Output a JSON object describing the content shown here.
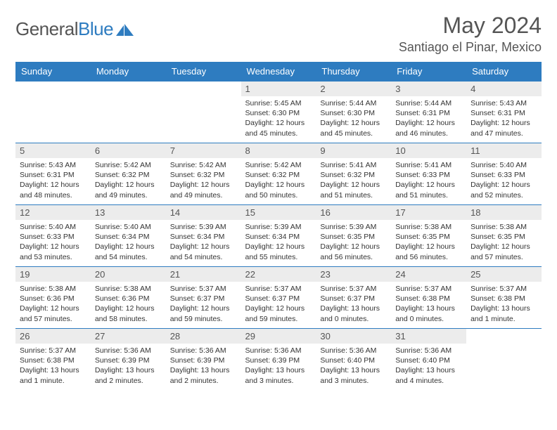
{
  "logo": {
    "word1": "General",
    "word2": "Blue"
  },
  "title": "May 2024",
  "location": "Santiago el Pinar, Mexico",
  "colors": {
    "brand": "#2e7cc0",
    "daybg": "#ececec",
    "text": "#555555",
    "body": "#333333"
  },
  "weekdays": [
    "Sunday",
    "Monday",
    "Tuesday",
    "Wednesday",
    "Thursday",
    "Friday",
    "Saturday"
  ],
  "weeks": [
    [
      {
        "n": "",
        "sr": "",
        "ss": "",
        "dl": ""
      },
      {
        "n": "",
        "sr": "",
        "ss": "",
        "dl": ""
      },
      {
        "n": "",
        "sr": "",
        "ss": "",
        "dl": ""
      },
      {
        "n": "1",
        "sr": "5:45 AM",
        "ss": "6:30 PM",
        "dl": "12 hours and 45 minutes."
      },
      {
        "n": "2",
        "sr": "5:44 AM",
        "ss": "6:30 PM",
        "dl": "12 hours and 45 minutes."
      },
      {
        "n": "3",
        "sr": "5:44 AM",
        "ss": "6:31 PM",
        "dl": "12 hours and 46 minutes."
      },
      {
        "n": "4",
        "sr": "5:43 AM",
        "ss": "6:31 PM",
        "dl": "12 hours and 47 minutes."
      }
    ],
    [
      {
        "n": "5",
        "sr": "5:43 AM",
        "ss": "6:31 PM",
        "dl": "12 hours and 48 minutes."
      },
      {
        "n": "6",
        "sr": "5:42 AM",
        "ss": "6:32 PM",
        "dl": "12 hours and 49 minutes."
      },
      {
        "n": "7",
        "sr": "5:42 AM",
        "ss": "6:32 PM",
        "dl": "12 hours and 49 minutes."
      },
      {
        "n": "8",
        "sr": "5:42 AM",
        "ss": "6:32 PM",
        "dl": "12 hours and 50 minutes."
      },
      {
        "n": "9",
        "sr": "5:41 AM",
        "ss": "6:32 PM",
        "dl": "12 hours and 51 minutes."
      },
      {
        "n": "10",
        "sr": "5:41 AM",
        "ss": "6:33 PM",
        "dl": "12 hours and 51 minutes."
      },
      {
        "n": "11",
        "sr": "5:40 AM",
        "ss": "6:33 PM",
        "dl": "12 hours and 52 minutes."
      }
    ],
    [
      {
        "n": "12",
        "sr": "5:40 AM",
        "ss": "6:33 PM",
        "dl": "12 hours and 53 minutes."
      },
      {
        "n": "13",
        "sr": "5:40 AM",
        "ss": "6:34 PM",
        "dl": "12 hours and 54 minutes."
      },
      {
        "n": "14",
        "sr": "5:39 AM",
        "ss": "6:34 PM",
        "dl": "12 hours and 54 minutes."
      },
      {
        "n": "15",
        "sr": "5:39 AM",
        "ss": "6:34 PM",
        "dl": "12 hours and 55 minutes."
      },
      {
        "n": "16",
        "sr": "5:39 AM",
        "ss": "6:35 PM",
        "dl": "12 hours and 56 minutes."
      },
      {
        "n": "17",
        "sr": "5:38 AM",
        "ss": "6:35 PM",
        "dl": "12 hours and 56 minutes."
      },
      {
        "n": "18",
        "sr": "5:38 AM",
        "ss": "6:35 PM",
        "dl": "12 hours and 57 minutes."
      }
    ],
    [
      {
        "n": "19",
        "sr": "5:38 AM",
        "ss": "6:36 PM",
        "dl": "12 hours and 57 minutes."
      },
      {
        "n": "20",
        "sr": "5:38 AM",
        "ss": "6:36 PM",
        "dl": "12 hours and 58 minutes."
      },
      {
        "n": "21",
        "sr": "5:37 AM",
        "ss": "6:37 PM",
        "dl": "12 hours and 59 minutes."
      },
      {
        "n": "22",
        "sr": "5:37 AM",
        "ss": "6:37 PM",
        "dl": "12 hours and 59 minutes."
      },
      {
        "n": "23",
        "sr": "5:37 AM",
        "ss": "6:37 PM",
        "dl": "13 hours and 0 minutes."
      },
      {
        "n": "24",
        "sr": "5:37 AM",
        "ss": "6:38 PM",
        "dl": "13 hours and 0 minutes."
      },
      {
        "n": "25",
        "sr": "5:37 AM",
        "ss": "6:38 PM",
        "dl": "13 hours and 1 minute."
      }
    ],
    [
      {
        "n": "26",
        "sr": "5:37 AM",
        "ss": "6:38 PM",
        "dl": "13 hours and 1 minute."
      },
      {
        "n": "27",
        "sr": "5:36 AM",
        "ss": "6:39 PM",
        "dl": "13 hours and 2 minutes."
      },
      {
        "n": "28",
        "sr": "5:36 AM",
        "ss": "6:39 PM",
        "dl": "13 hours and 2 minutes."
      },
      {
        "n": "29",
        "sr": "5:36 AM",
        "ss": "6:39 PM",
        "dl": "13 hours and 3 minutes."
      },
      {
        "n": "30",
        "sr": "5:36 AM",
        "ss": "6:40 PM",
        "dl": "13 hours and 3 minutes."
      },
      {
        "n": "31",
        "sr": "5:36 AM",
        "ss": "6:40 PM",
        "dl": "13 hours and 4 minutes."
      },
      {
        "n": "",
        "sr": "",
        "ss": "",
        "dl": ""
      }
    ]
  ],
  "labels": {
    "sunrise": "Sunrise:",
    "sunset": "Sunset:",
    "daylight": "Daylight:"
  }
}
